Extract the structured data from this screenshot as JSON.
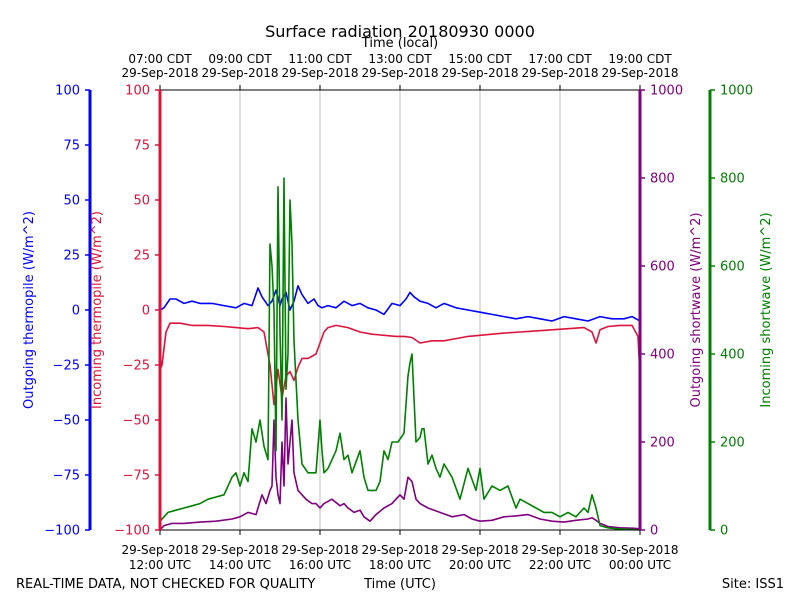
{
  "chart_data": {
    "type": "line",
    "title": "Surface radiation 20180930 0000",
    "top_axis_label": "Time (local)",
    "xlabel": "Time (UTC)",
    "left_note": "REAL-TIME DATA, NOT CHECKED FOR QUALITY",
    "right_note": "Site: ISS1",
    "x_range_hours_utc": [
      12,
      24
    ],
    "x_bottom_ticks": [
      {
        "x": 12,
        "line1": "29-Sep-2018",
        "line2": "12:00 UTC"
      },
      {
        "x": 14,
        "line1": "29-Sep-2018",
        "line2": "14:00 UTC"
      },
      {
        "x": 16,
        "line1": "29-Sep-2018",
        "line2": "16:00 UTC"
      },
      {
        "x": 18,
        "line1": "29-Sep-2018",
        "line2": "18:00 UTC"
      },
      {
        "x": 20,
        "line1": "29-Sep-2018",
        "line2": "20:00 UTC"
      },
      {
        "x": 22,
        "line1": "29-Sep-2018",
        "line2": "22:00 UTC"
      },
      {
        "x": 24,
        "line1": "30-Sep-2018",
        "line2": "00:00 UTC"
      }
    ],
    "x_top_ticks": [
      {
        "x": 12,
        "line1": "07:00 CDT",
        "line2": "29-Sep-2018"
      },
      {
        "x": 14,
        "line1": "09:00 CDT",
        "line2": "29-Sep-2018"
      },
      {
        "x": 16,
        "line1": "11:00 CDT",
        "line2": "29-Sep-2018"
      },
      {
        "x": 18,
        "line1": "13:00 CDT",
        "line2": "29-Sep-2018"
      },
      {
        "x": 20,
        "line1": "15:00 CDT",
        "line2": "29-Sep-2018"
      },
      {
        "x": 22,
        "line1": "17:00 CDT",
        "line2": "29-Sep-2018"
      },
      {
        "x": 24,
        "line1": "19:00 CDT",
        "line2": "29-Sep-2018"
      }
    ],
    "grid": true,
    "axes": [
      {
        "id": "out_tp",
        "label": "Outgoing thermopile (W/m^2)",
        "color": "#0000ff",
        "ylim": [
          -100,
          100
        ],
        "ticks": [
          "100",
          "75",
          "50",
          "25",
          "0",
          "−25",
          "−50",
          "−75",
          "−100"
        ]
      },
      {
        "id": "in_tp",
        "label": "Incoming thermopile (W/m^2)",
        "color": "#dc143c",
        "ylim": [
          -100,
          100
        ],
        "ticks": [
          "100",
          "75",
          "50",
          "25",
          "0",
          "−25",
          "−50",
          "−75",
          "−100"
        ]
      },
      {
        "id": "out_sw",
        "label": "Outgoing shortwave (W/m^2)",
        "color": "#800080",
        "ylim": [
          0,
          1000
        ],
        "ticks": [
          "1000",
          "800",
          "600",
          "400",
          "200",
          "0"
        ]
      },
      {
        "id": "in_sw",
        "label": "Incoming shortwave (W/m^2)",
        "color": "#008000",
        "ylim": [
          0,
          1000
        ],
        "ticks": [
          "1000",
          "800",
          "600",
          "400",
          "200",
          "0"
        ]
      }
    ],
    "series": [
      {
        "axis": "out_tp",
        "color": "#0000ff",
        "x": [
          12.0,
          12.1,
          12.25,
          12.4,
          12.6,
          12.8,
          13.0,
          13.3,
          13.6,
          13.9,
          14.1,
          14.3,
          14.45,
          14.55,
          14.7,
          14.8,
          14.9,
          15.0,
          15.05,
          15.15,
          15.25,
          15.35,
          15.45,
          15.55,
          15.7,
          15.85,
          15.95,
          16.05,
          16.2,
          16.4,
          16.6,
          16.8,
          17.0,
          17.2,
          17.4,
          17.6,
          17.8,
          18.0,
          18.15,
          18.25,
          18.35,
          18.5,
          18.7,
          18.9,
          19.1,
          19.4,
          19.7,
          20.0,
          20.3,
          20.6,
          20.9,
          21.2,
          21.5,
          21.8,
          22.1,
          22.4,
          22.7,
          23.0,
          23.3,
          23.6,
          23.8,
          24.0
        ],
        "values": [
          0,
          1,
          5,
          5,
          3,
          4,
          3,
          3,
          2,
          1,
          3,
          2,
          10,
          6,
          2,
          4,
          9,
          2,
          5,
          8,
          0,
          4,
          11,
          7,
          3,
          5,
          2,
          1,
          2,
          1,
          4,
          2,
          3,
          1,
          0,
          -2,
          3,
          2,
          5,
          8,
          6,
          4,
          3,
          1,
          3,
          1,
          0,
          -1,
          -2,
          -3,
          -4,
          -3,
          -4,
          -5,
          -3,
          -4,
          -5,
          -3,
          -4,
          -4,
          -3,
          -5
        ]
      },
      {
        "axis": "in_tp",
        "color": "#dc143c",
        "x": [
          12.0,
          12.05,
          12.15,
          12.25,
          12.5,
          12.8,
          13.2,
          13.6,
          13.9,
          14.2,
          14.45,
          14.6,
          14.75,
          14.85,
          14.95,
          15.05,
          15.15,
          15.25,
          15.35,
          15.45,
          15.55,
          15.7,
          15.9,
          16.0,
          16.1,
          16.2,
          16.4,
          16.7,
          17.0,
          17.3,
          17.6,
          17.9,
          18.1,
          18.3,
          18.5,
          18.8,
          19.1,
          19.4,
          19.7,
          20.0,
          20.3,
          20.6,
          21.0,
          21.4,
          21.8,
          22.2,
          22.6,
          22.8,
          22.9,
          23.0,
          23.2,
          23.5,
          23.8,
          23.95,
          24.0
        ],
        "values": [
          -27,
          -25,
          -10,
          -6,
          -6,
          -7,
          -7,
          -7.5,
          -8,
          -8.5,
          -8,
          -10,
          -25,
          -43,
          -27,
          -40,
          -30,
          -28,
          -32,
          -26,
          -22,
          -22,
          -20,
          -15,
          -10,
          -8,
          -7,
          -8,
          -10,
          -11,
          -11.5,
          -12,
          -12,
          -12.5,
          -15,
          -14,
          -14,
          -13,
          -12,
          -11.5,
          -11,
          -10.5,
          -10,
          -9.5,
          -9,
          -8.5,
          -8,
          -10,
          -15,
          -9,
          -7.5,
          -7,
          -7,
          -12,
          -30
        ]
      },
      {
        "axis": "out_sw",
        "color": "#800080",
        "x": [
          12.0,
          12.1,
          12.3,
          12.6,
          13.0,
          13.4,
          13.8,
          14.0,
          14.2,
          14.4,
          14.45,
          14.55,
          14.65,
          14.75,
          14.8,
          14.85,
          14.9,
          14.95,
          15.0,
          15.05,
          15.1,
          15.15,
          15.2,
          15.3,
          15.35,
          15.45,
          15.55,
          15.65,
          15.8,
          15.9,
          16.0,
          16.1,
          16.3,
          16.5,
          16.6,
          16.7,
          16.85,
          17.0,
          17.1,
          17.25,
          17.4,
          17.6,
          17.8,
          18.0,
          18.1,
          18.2,
          18.3,
          18.4,
          18.5,
          18.7,
          19.0,
          19.3,
          19.6,
          19.8,
          20.0,
          20.3,
          20.6,
          20.9,
          21.2,
          21.5,
          21.8,
          22.1,
          22.4,
          22.7,
          22.8,
          22.9,
          23.0,
          23.2,
          23.5,
          23.8,
          24.0
        ],
        "values": [
          0,
          10,
          15,
          15,
          18,
          20,
          25,
          30,
          40,
          35,
          50,
          80,
          60,
          90,
          100,
          250,
          120,
          80,
          60,
          200,
          100,
          300,
          150,
          250,
          130,
          90,
          80,
          70,
          60,
          60,
          50,
          60,
          70,
          55,
          60,
          50,
          40,
          45,
          30,
          20,
          35,
          50,
          60,
          80,
          70,
          120,
          110,
          70,
          60,
          50,
          40,
          30,
          35,
          25,
          20,
          22,
          30,
          32,
          35,
          25,
          20,
          18,
          22,
          25,
          28,
          22,
          15,
          8,
          5,
          4,
          3
        ]
      },
      {
        "axis": "in_sw",
        "color": "#008000",
        "x": [
          12.0,
          12.2,
          12.4,
          12.6,
          12.8,
          13.0,
          13.2,
          13.4,
          13.6,
          13.8,
          13.9,
          14.0,
          14.1,
          14.2,
          14.3,
          14.4,
          14.5,
          14.6,
          14.7,
          14.75,
          14.8,
          14.85,
          14.9,
          14.95,
          15.0,
          15.05,
          15.1,
          15.15,
          15.2,
          15.25,
          15.3,
          15.35,
          15.45,
          15.55,
          15.7,
          15.9,
          16.0,
          16.05,
          16.1,
          16.2,
          16.4,
          16.5,
          16.6,
          16.7,
          16.8,
          17.0,
          17.1,
          17.2,
          17.4,
          17.5,
          17.6,
          17.7,
          17.8,
          17.95,
          18.1,
          18.2,
          18.25,
          18.3,
          18.35,
          18.4,
          18.5,
          18.55,
          18.6,
          18.7,
          18.8,
          18.9,
          19.0,
          19.1,
          19.3,
          19.5,
          19.7,
          19.9,
          20.0,
          20.1,
          20.3,
          20.5,
          20.7,
          20.9,
          21.0,
          21.2,
          21.4,
          21.6,
          21.8,
          22.0,
          22.2,
          22.4,
          22.6,
          22.7,
          22.8,
          22.9,
          23.0,
          23.2,
          23.4,
          23.6,
          24.0
        ],
        "values": [
          20,
          40,
          45,
          50,
          55,
          60,
          70,
          75,
          80,
          120,
          130,
          100,
          130,
          110,
          230,
          200,
          250,
          190,
          160,
          650,
          600,
          500,
          180,
          780,
          450,
          250,
          800,
          320,
          400,
          750,
          650,
          430,
          250,
          150,
          130,
          130,
          250,
          180,
          130,
          140,
          180,
          220,
          160,
          170,
          130,
          180,
          120,
          90,
          90,
          110,
          180,
          160,
          200,
          200,
          220,
          350,
          380,
          400,
          300,
          200,
          210,
          230,
          230,
          150,
          170,
          140,
          120,
          150,
          120,
          70,
          140,
          90,
          140,
          70,
          100,
          90,
          100,
          50,
          70,
          60,
          50,
          40,
          40,
          30,
          40,
          30,
          50,
          40,
          80,
          50,
          10,
          5,
          3,
          2,
          0
        ]
      }
    ]
  }
}
